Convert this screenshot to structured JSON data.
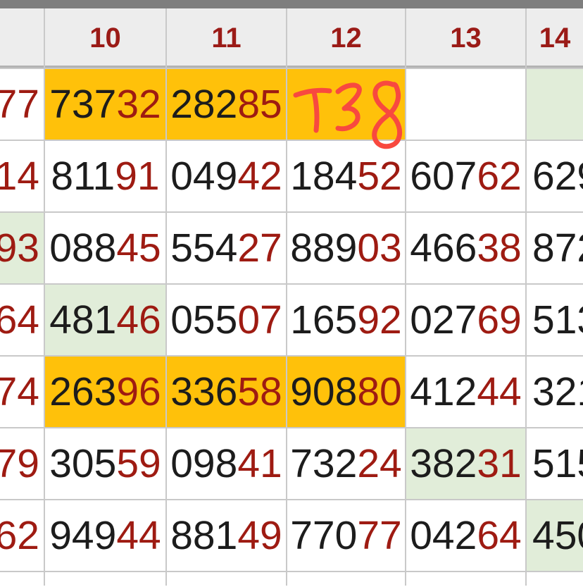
{
  "colors": {
    "orange_highlight": "#FFC10A",
    "green_highlight": "#E1EDD9",
    "header_bg": "#EDEDED",
    "header_text": "#9B1B17",
    "grid_line": "#C9C9C9",
    "top_bar": "#7E7E7E",
    "digit_black": "#1C1C1C",
    "digit_red": "#9E1B12",
    "annotation_red": "#F8493F"
  },
  "annotation": {
    "text": "T38"
  },
  "table": {
    "header": [
      "",
      "10",
      "11",
      "12",
      "13",
      "14"
    ],
    "rows": [
      [
        {
          "black": "",
          "red": "77",
          "bg": "white",
          "edge": "left"
        },
        {
          "black": "737",
          "red": "32",
          "bg": "orange"
        },
        {
          "black": "282",
          "red": "85",
          "bg": "orange"
        },
        {
          "black": "",
          "red": "",
          "bg": "orange",
          "annotated": true
        },
        {
          "black": "",
          "red": "",
          "bg": "white"
        },
        {
          "black": "",
          "red": "",
          "bg": "green",
          "edge": "right"
        }
      ],
      [
        {
          "black": "",
          "red": "14",
          "bg": "white",
          "edge": "left"
        },
        {
          "black": "811",
          "red": "91",
          "bg": "white"
        },
        {
          "black": "049",
          "red": "42",
          "bg": "white"
        },
        {
          "black": "184",
          "red": "52",
          "bg": "white"
        },
        {
          "black": "607",
          "red": "62",
          "bg": "white"
        },
        {
          "black": "629",
          "red": "",
          "bg": "white",
          "edge": "right"
        }
      ],
      [
        {
          "black": "",
          "red": "93",
          "bg": "green",
          "edge": "left"
        },
        {
          "black": "088",
          "red": "45",
          "bg": "white"
        },
        {
          "black": "554",
          "red": "27",
          "bg": "white"
        },
        {
          "black": "889",
          "red": "03",
          "bg": "white"
        },
        {
          "black": "466",
          "red": "38",
          "bg": "white"
        },
        {
          "black": "872",
          "red": "",
          "bg": "white",
          "edge": "right"
        }
      ],
      [
        {
          "black": "",
          "red": "64",
          "bg": "white",
          "edge": "left"
        },
        {
          "black": "481",
          "red": "46",
          "bg": "green"
        },
        {
          "black": "055",
          "red": "07",
          "bg": "white"
        },
        {
          "black": "165",
          "red": "92",
          "bg": "white"
        },
        {
          "black": "027",
          "red": "69",
          "bg": "white"
        },
        {
          "black": "513",
          "red": "",
          "bg": "white",
          "edge": "right"
        }
      ],
      [
        {
          "black": "",
          "red": "74",
          "bg": "white",
          "edge": "left"
        },
        {
          "black": "263",
          "red": "96",
          "bg": "orange"
        },
        {
          "black": "336",
          "red": "58",
          "bg": "orange"
        },
        {
          "black": "908",
          "red": "80",
          "bg": "orange"
        },
        {
          "black": "412",
          "red": "44",
          "bg": "white"
        },
        {
          "black": "321",
          "red": "",
          "bg": "white",
          "edge": "right"
        }
      ],
      [
        {
          "black": "",
          "red": "79",
          "bg": "white",
          "edge": "left"
        },
        {
          "black": "305",
          "red": "59",
          "bg": "white"
        },
        {
          "black": "098",
          "red": "41",
          "bg": "white"
        },
        {
          "black": "732",
          "red": "24",
          "bg": "white"
        },
        {
          "black": "382",
          "red": "31",
          "bg": "green"
        },
        {
          "black": "515",
          "red": "",
          "bg": "white",
          "edge": "right"
        }
      ],
      [
        {
          "black": "",
          "red": "62",
          "bg": "white",
          "edge": "left"
        },
        {
          "black": "949",
          "red": "44",
          "bg": "white"
        },
        {
          "black": "881",
          "red": "49",
          "bg": "white"
        },
        {
          "black": "770",
          "red": "77",
          "bg": "white"
        },
        {
          "black": "042",
          "red": "64",
          "bg": "white"
        },
        {
          "black": "450",
          "red": "",
          "bg": "green",
          "edge": "right"
        }
      ],
      [
        {
          "black": "",
          "red": "",
          "bg": "white",
          "edge": "left"
        },
        {
          "black": "",
          "red": "",
          "bg": "white"
        },
        {
          "black": "",
          "red": "",
          "bg": "white"
        },
        {
          "black": "",
          "red": "",
          "bg": "white"
        },
        {
          "black": "",
          "red": "",
          "bg": "white"
        },
        {
          "black": "",
          "red": "",
          "bg": "white",
          "edge": "right"
        }
      ]
    ]
  }
}
